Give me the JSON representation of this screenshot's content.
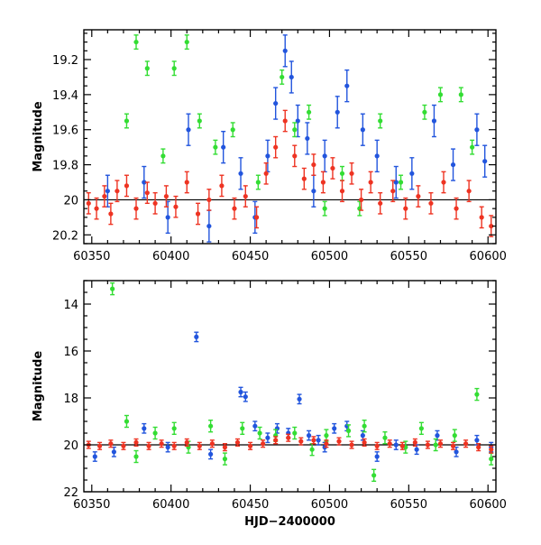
{
  "chart_data": [
    {
      "type": "scatter",
      "panel": "top",
      "title": "",
      "xlabel": "",
      "ylabel": "Magnitude",
      "xlim": [
        60345,
        60605
      ],
      "ylim": [
        20.25,
        19.03
      ],
      "y_inverted": true,
      "error_bars": true,
      "grid": false,
      "legend": "none",
      "x_ticks": [
        60350,
        60400,
        60450,
        60500,
        60550,
        60600
      ],
      "x_tick_labels": [
        "60350",
        "60400",
        "60450",
        "60500",
        "60550",
        "60600"
      ],
      "y_ticks": [
        19.2,
        19.4,
        19.6,
        19.8,
        20,
        20.2
      ],
      "y_tick_labels": [
        "19.2",
        "19.4",
        "19.6",
        "19.8",
        "20",
        "20.2"
      ],
      "series": [
        {
          "color": "#ee3322",
          "values": [
            [
              60348,
              20.02
            ],
            [
              60353,
              20.05
            ],
            [
              60358,
              19.98
            ],
            [
              60362,
              20.08
            ],
            [
              60366,
              19.95
            ],
            [
              60372,
              19.92
            ],
            [
              60378,
              20.05
            ],
            [
              60385,
              19.96
            ],
            [
              60390,
              20.02
            ],
            [
              60397,
              19.98
            ],
            [
              60403,
              20.04
            ],
            [
              60410,
              19.9
            ],
            [
              60417,
              20.08
            ],
            [
              60424,
              20.0
            ],
            [
              60432,
              19.92
            ],
            [
              60440,
              20.05
            ],
            [
              60447,
              19.98
            ],
            [
              60454,
              20.1
            ],
            [
              60460,
              19.85
            ],
            [
              60466,
              19.7
            ],
            [
              60472,
              19.55
            ],
            [
              60478,
              19.75
            ],
            [
              60484,
              19.88
            ],
            [
              60490,
              19.8
            ],
            [
              60496,
              19.9
            ],
            [
              60502,
              19.82
            ],
            [
              60508,
              19.95
            ],
            [
              60514,
              19.85
            ],
            [
              60520,
              20.0
            ],
            [
              60526,
              19.9
            ],
            [
              60532,
              20.02
            ],
            [
              60540,
              19.95
            ],
            [
              60548,
              20.05
            ],
            [
              60556,
              19.98
            ],
            [
              60564,
              20.02
            ],
            [
              60572,
              19.9
            ],
            [
              60580,
              20.05
            ],
            [
              60588,
              19.95
            ],
            [
              60596,
              20.1
            ],
            [
              60602,
              20.15
            ]
          ]
        },
        {
          "color": "#2255dd",
          "values": [
            [
              60360,
              19.95
            ],
            [
              60383,
              19.9
            ],
            [
              60398,
              20.1
            ],
            [
              60411,
              19.6
            ],
            [
              60424,
              20.15
            ],
            [
              60433,
              19.7
            ],
            [
              60444,
              19.85
            ],
            [
              60453,
              20.1
            ],
            [
              60461,
              19.75
            ],
            [
              60466,
              19.45
            ],
            [
              60472,
              19.15
            ],
            [
              60476,
              19.3
            ],
            [
              60480,
              19.55
            ],
            [
              60486,
              19.65
            ],
            [
              60490,
              19.95
            ],
            [
              60497,
              19.75
            ],
            [
              60505,
              19.5
            ],
            [
              60511,
              19.35
            ],
            [
              60521,
              19.6
            ],
            [
              60530,
              19.75
            ],
            [
              60542,
              19.9
            ],
            [
              60552,
              19.85
            ],
            [
              60566,
              19.55
            ],
            [
              60578,
              19.8
            ],
            [
              60593,
              19.6
            ],
            [
              60598,
              19.78
            ]
          ]
        },
        {
          "color": "#33dd33",
          "values": [
            [
              60372,
              19.55
            ],
            [
              60378,
              19.1
            ],
            [
              60385,
              19.25
            ],
            [
              60395,
              19.75
            ],
            [
              60402,
              19.25
            ],
            [
              60410,
              19.1
            ],
            [
              60418,
              19.55
            ],
            [
              60428,
              19.7
            ],
            [
              60439,
              19.6
            ],
            [
              60455,
              19.9
            ],
            [
              60470,
              19.3
            ],
            [
              60478,
              19.6
            ],
            [
              60487,
              19.5
            ],
            [
              60497,
              20.05
            ],
            [
              60508,
              19.85
            ],
            [
              60519,
              20.05
            ],
            [
              60532,
              19.55
            ],
            [
              60545,
              19.9
            ],
            [
              60560,
              19.5
            ],
            [
              60570,
              19.4
            ],
            [
              60583,
              19.4
            ],
            [
              60590,
              19.7
            ]
          ]
        }
      ]
    },
    {
      "type": "scatter",
      "panel": "bottom",
      "title": "",
      "xlabel": "HJD−2400000",
      "ylabel": "Magnitude",
      "xlim": [
        60345,
        60605
      ],
      "ylim": [
        22,
        13
      ],
      "y_inverted": true,
      "error_bars": true,
      "grid": false,
      "legend": "none",
      "x_ticks": [
        60350,
        60400,
        60450,
        60500,
        60550,
        60600
      ],
      "x_tick_labels": [
        "60350",
        "60400",
        "60450",
        "60500",
        "60550",
        "60600"
      ],
      "y_ticks": [
        14,
        16,
        18,
        20,
        22
      ],
      "y_tick_labels": [
        "14",
        "16",
        "18",
        "20",
        "22"
      ],
      "series": [
        {
          "color": "#ee3322",
          "values": [
            [
              60348,
              20.0
            ],
            [
              60355,
              20.05
            ],
            [
              60362,
              19.95
            ],
            [
              60370,
              20.05
            ],
            [
              60378,
              19.9
            ],
            [
              60386,
              20.05
            ],
            [
              60394,
              19.95
            ],
            [
              60402,
              20.05
            ],
            [
              60410,
              19.9
            ],
            [
              60418,
              20.05
            ],
            [
              60426,
              19.95
            ],
            [
              60434,
              20.1
            ],
            [
              60442,
              19.9
            ],
            [
              60450,
              20.05
            ],
            [
              60458,
              19.95
            ],
            [
              60466,
              19.8
            ],
            [
              60474,
              19.7
            ],
            [
              60482,
              19.85
            ],
            [
              60490,
              19.8
            ],
            [
              60498,
              19.95
            ],
            [
              60506,
              19.85
            ],
            [
              60514,
              20.0
            ],
            [
              60522,
              19.9
            ],
            [
              60530,
              20.05
            ],
            [
              60538,
              19.95
            ],
            [
              60546,
              20.05
            ],
            [
              60554,
              19.9
            ],
            [
              60562,
              20.0
            ],
            [
              60570,
              19.95
            ],
            [
              60578,
              20.05
            ],
            [
              60586,
              19.95
            ],
            [
              60594,
              20.1
            ],
            [
              60602,
              20.2
            ]
          ]
        },
        {
          "color": "#2255dd",
          "values": [
            [
              60352,
              20.5
            ],
            [
              60364,
              20.3
            ],
            [
              60383,
              19.3
            ],
            [
              60398,
              20.1
            ],
            [
              60416,
              15.4
            ],
            [
              60425,
              20.4
            ],
            [
              60444,
              17.75
            ],
            [
              60447,
              17.95
            ],
            [
              60453,
              19.2
            ],
            [
              60461,
              19.7
            ],
            [
              60467,
              19.3
            ],
            [
              60474,
              19.5
            ],
            [
              60481,
              18.05
            ],
            [
              60487,
              19.6
            ],
            [
              60493,
              19.8
            ],
            [
              60497,
              20.1
            ],
            [
              60503,
              19.3
            ],
            [
              60511,
              19.2
            ],
            [
              60521,
              19.6
            ],
            [
              60530,
              20.5
            ],
            [
              60542,
              20.0
            ],
            [
              60555,
              20.2
            ],
            [
              60568,
              19.6
            ],
            [
              60580,
              20.3
            ],
            [
              60593,
              19.8
            ],
            [
              60602,
              20.1
            ]
          ]
        },
        {
          "color": "#33dd33",
          "values": [
            [
              60363,
              13.35
            ],
            [
              60372,
              19.0
            ],
            [
              60378,
              20.5
            ],
            [
              60390,
              19.5
            ],
            [
              60402,
              19.3
            ],
            [
              60411,
              20.1
            ],
            [
              60425,
              19.2
            ],
            [
              60434,
              20.6
            ],
            [
              60445,
              19.3
            ],
            [
              60456,
              19.5
            ],
            [
              60466,
              19.6
            ],
            [
              60478,
              19.5
            ],
            [
              60489,
              20.2
            ],
            [
              60498,
              19.6
            ],
            [
              60512,
              19.4
            ],
            [
              60522,
              19.2
            ],
            [
              60528,
              21.3
            ],
            [
              60535,
              19.7
            ],
            [
              60548,
              20.1
            ],
            [
              60558,
              19.3
            ],
            [
              60567,
              20.0
            ],
            [
              60579,
              19.6
            ],
            [
              60593,
              17.85
            ],
            [
              60602,
              20.6
            ]
          ]
        }
      ]
    }
  ]
}
